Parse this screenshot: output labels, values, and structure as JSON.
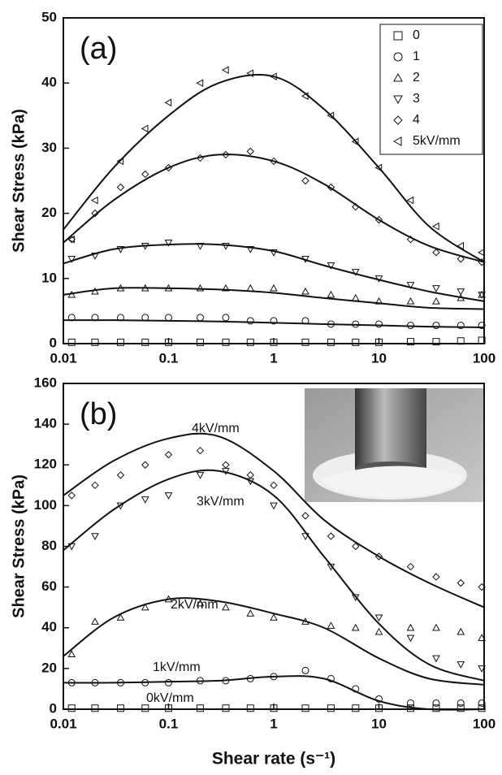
{
  "chart_data": [
    {
      "type": "scatter",
      "panel_label": "(a)",
      "ylabel": "Shear Stress (kPa)",
      "xscale": "log",
      "xlim": [
        0.01,
        100
      ],
      "xticks": [
        0.01,
        0.1,
        1,
        10,
        100
      ],
      "ylim": [
        0,
        50
      ],
      "yticks": [
        0,
        10,
        20,
        30,
        40,
        50
      ],
      "legend": true,
      "legend_position": "upper right",
      "color": "#111111",
      "x": [
        0.012,
        0.02,
        0.035,
        0.06,
        0.1,
        0.2,
        0.35,
        0.6,
        1,
        2,
        3.5,
        6,
        10,
        20,
        35,
        60,
        95
      ],
      "fit_x": [
        0.01,
        0.03,
        0.1,
        0.3,
        1,
        3,
        10,
        30,
        100
      ],
      "series": [
        {
          "name": "0",
          "marker": "square",
          "values": [
            0.2,
            0.2,
            0.2,
            0.2,
            0.2,
            0.2,
            0.2,
            0.2,
            0.2,
            0.2,
            0.2,
            0.2,
            0.2,
            0.3,
            0.3,
            0.4,
            0.5
          ]
        },
        {
          "name": "1",
          "marker": "circle",
          "values": [
            4,
            4,
            4,
            4,
            4,
            4,
            4,
            3.5,
            3.5,
            3.5,
            3,
            3,
            3,
            2.8,
            2.8,
            2.8,
            2.8
          ],
          "fit": [
            3.6,
            3.6,
            3.5,
            3.4,
            3.2,
            3,
            2.8,
            2.6,
            2.5
          ]
        },
        {
          "name": "2",
          "marker": "triangle-up",
          "values": [
            7.5,
            8,
            8.5,
            8.5,
            8.5,
            8.5,
            8.5,
            8.5,
            8.5,
            8,
            7.5,
            7,
            6.5,
            6.5,
            6.5,
            7,
            7.5
          ],
          "fit": [
            7.5,
            8.5,
            8.5,
            8.3,
            7.8,
            7,
            6.2,
            5.5,
            5.3
          ]
        },
        {
          "name": "3",
          "marker": "triangle-down",
          "values": [
            13,
            13.5,
            14.5,
            15,
            15.5,
            15,
            15,
            14.5,
            14,
            13,
            12,
            11,
            10,
            9,
            8.5,
            8,
            7.5
          ],
          "fit": [
            12.3,
            14.5,
            15.2,
            15.2,
            14.2,
            12,
            9.8,
            8,
            6.5
          ]
        },
        {
          "name": "4",
          "marker": "diamond",
          "values": [
            16,
            20,
            24,
            26,
            27,
            28.5,
            29,
            29.5,
            28,
            25,
            24,
            21,
            19,
            16,
            14,
            13,
            12.5
          ],
          "fit": [
            15.5,
            22,
            27,
            29,
            28,
            24.5,
            19,
            15,
            12.5
          ]
        },
        {
          "name": "5kV/mm",
          "marker": "triangle-left",
          "values": [
            16,
            22,
            28,
            33,
            37,
            40,
            42,
            41.5,
            41,
            38,
            35,
            31,
            27,
            22,
            18,
            15,
            14
          ],
          "fit": [
            17.5,
            27,
            35,
            40,
            41,
            36,
            27,
            18,
            12.5
          ]
        }
      ]
    },
    {
      "type": "scatter",
      "panel_label": "(b)",
      "ylabel": "Shear Stress (kPa)",
      "xlabel": "Shear rate (s⁻¹)",
      "xscale": "log",
      "xlim": [
        0.01,
        100
      ],
      "xticks": [
        0.01,
        0.1,
        1,
        10,
        100
      ],
      "ylim": [
        0,
        160
      ],
      "yticks": [
        0,
        20,
        40,
        60,
        80,
        100,
        120,
        140,
        160
      ],
      "legend": false,
      "color": "#111111",
      "x": [
        0.012,
        0.02,
        0.035,
        0.06,
        0.1,
        0.2,
        0.35,
        0.6,
        1,
        2,
        3.5,
        6,
        10,
        20,
        35,
        60,
        95
      ],
      "fit_x": [
        0.01,
        0.03,
        0.1,
        0.3,
        1,
        3,
        10,
        30,
        100
      ],
      "series": [
        {
          "name": "0kV/mm",
          "marker": "square",
          "values": [
            0.5,
            0.5,
            0.5,
            0.5,
            0.5,
            0.5,
            0.5,
            0.5,
            0.5,
            0.5,
            0.5,
            0.5,
            0.5,
            0.5,
            0.5,
            0.5,
            0.5
          ],
          "fit": [
            0,
            0,
            0,
            0,
            0,
            0,
            0,
            0,
            0
          ]
        },
        {
          "name": "1kV/mm",
          "marker": "circle",
          "values": [
            13,
            13,
            13,
            13,
            13,
            14,
            14,
            15,
            16,
            19,
            15,
            10,
            5,
            3,
            3,
            3,
            3
          ],
          "fit": [
            13,
            13,
            13.5,
            14,
            16,
            15,
            4,
            0,
            0
          ]
        },
        {
          "name": "2kV/mm",
          "marker": "triangle-up",
          "values": [
            27,
            43,
            45,
            50,
            54,
            52,
            50,
            47,
            45,
            43,
            41,
            40,
            38,
            40,
            40,
            38,
            35
          ],
          "fit": [
            26,
            45,
            54,
            53,
            47,
            40,
            25,
            15,
            12
          ]
        },
        {
          "name": "3kV/mm",
          "marker": "triangle-down",
          "values": [
            80,
            85,
            100,
            103,
            105,
            115,
            117,
            112,
            100,
            85,
            70,
            55,
            45,
            35,
            25,
            22,
            20
          ],
          "fit": [
            78,
            98,
            113,
            117,
            105,
            75,
            42,
            22,
            14
          ]
        },
        {
          "name": "4kV/mm",
          "marker": "diamond",
          "values": [
            105,
            110,
            115,
            120,
            125,
            127,
            120,
            115,
            110,
            95,
            85,
            80,
            75,
            70,
            65,
            62,
            60
          ],
          "fit": [
            105,
            122,
            133,
            134,
            117,
            93,
            75,
            62,
            50
          ]
        }
      ]
    }
  ]
}
